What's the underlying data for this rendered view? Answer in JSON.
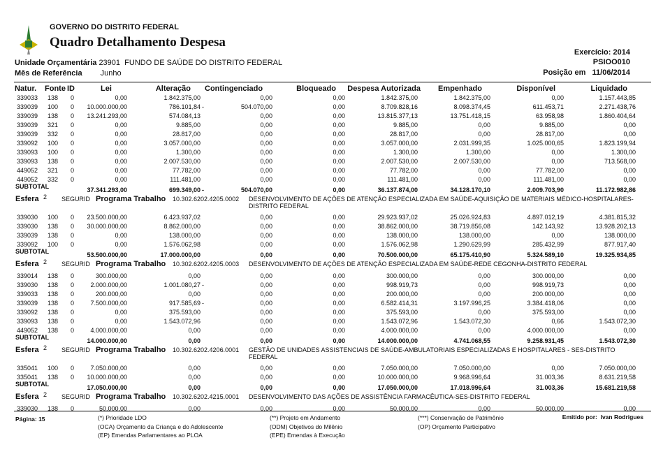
{
  "header": {
    "org": "GOVERNO DO DISTRITO FEDERAL",
    "title": "Quadro Detalhamento Despesa",
    "exercicio_label": "Exercício:",
    "exercicio": "2014",
    "report_code": "PSIOO010",
    "unidade_label": "Unidade Orçamentária",
    "unidade_code": "23901",
    "unidade_name": "FUNDO DE SAÚDE DO DISTRITO FEDERAL",
    "mes_label": "Mês de Referência",
    "mes": "Junho",
    "posicao_label": "Posição em",
    "posicao": "11/06/2014"
  },
  "columns": [
    "Natur.",
    "Fonte",
    "ID",
    "Lei",
    "Alteração",
    "Contingenciado",
    "Bloqueado",
    "Despesa Autorizada",
    "Empenhado",
    "Disponível",
    "Liquidado"
  ],
  "subtotal_label": "SUBTOTAL",
  "sections": [
    {
      "esfera": null,
      "rows": [
        [
          "339033",
          "138",
          "0",
          "0,00",
          "1.842.375,00",
          "",
          "0,00",
          "0,00",
          "1.842.375,00",
          "1.842.375,00",
          "0,00",
          "1.157.443,85"
        ],
        [
          "339039",
          "100",
          "0",
          "10.000.000,00",
          "786.101,84",
          "-",
          "504.070,00",
          "0,00",
          "8.709.828,16",
          "8.098.374,45",
          "611.453,71",
          "2.271.438,76"
        ],
        [
          "339039",
          "138",
          "0",
          "13.241.293,00",
          "574.084,13",
          "",
          "0,00",
          "0,00",
          "13.815.377,13",
          "13.751.418,15",
          "63.958,98",
          "1.860.404,64"
        ],
        [
          "339039",
          "321",
          "0",
          "0,00",
          "9.885,00",
          "",
          "0,00",
          "0,00",
          "9.885,00",
          "0,00",
          "9.885,00",
          "0,00"
        ],
        [
          "339039",
          "332",
          "0",
          "0,00",
          "28.817,00",
          "",
          "0,00",
          "0,00",
          "28.817,00",
          "0,00",
          "28.817,00",
          "0,00"
        ],
        [
          "339092",
          "100",
          "0",
          "0,00",
          "3.057.000,00",
          "",
          "0,00",
          "0,00",
          "3.057.000,00",
          "2.031.999,35",
          "1.025.000,65",
          "1.823.199,94"
        ],
        [
          "339093",
          "100",
          "0",
          "0,00",
          "1.300,00",
          "",
          "0,00",
          "0,00",
          "1.300,00",
          "1.300,00",
          "0,00",
          "1.300,00"
        ],
        [
          "339093",
          "138",
          "0",
          "0,00",
          "2.007.530,00",
          "",
          "0,00",
          "0,00",
          "2.007.530,00",
          "2.007.530,00",
          "0,00",
          "713.568,00"
        ],
        [
          "449052",
          "321",
          "0",
          "0,00",
          "77.782,00",
          "",
          "0,00",
          "0,00",
          "77.782,00",
          "0,00",
          "77.782,00",
          "0,00"
        ],
        [
          "449052",
          "332",
          "0",
          "0,00",
          "111.481,00",
          "",
          "0,00",
          "0,00",
          "111.481,00",
          "0,00",
          "111.481,00",
          "0,00"
        ]
      ],
      "subtotal": [
        "37.341.293,00",
        "699.349,00",
        "-",
        "504.070,00",
        "0,00",
        "36.137.874,00",
        "34.128.170,10",
        "2.009.703,90",
        "11.172.982,86"
      ]
    },
    {
      "esfera": {
        "label": "Esfera",
        "num": "2",
        "seg": "SEGURID",
        "prog_label": "Programa Trabalho",
        "code": "10.302.6202.4205.0002",
        "desc": "DESENVOLVIMENTO DE AÇÕES DE ATENÇÃO ESPECIALIZADA EM SAÚDE-AQUISIÇÃO DE MATERIAIS MÉDICO-HOSPITALARES-DISTRITO FEDERAL"
      },
      "rows": [
        [
          "339030",
          "100",
          "0",
          "23.500.000,00",
          "6.423.937,02",
          "",
          "0,00",
          "0,00",
          "29.923.937,02",
          "25.026.924,83",
          "4.897.012,19",
          "4.381.815,32"
        ],
        [
          "339030",
          "138",
          "0",
          "30.000.000,00",
          "8.862.000,00",
          "",
          "0,00",
          "0,00",
          "38.862.000,00",
          "38.719.856,08",
          "142.143,92",
          "13.928.202,13"
        ],
        [
          "339039",
          "138",
          "0",
          "0,00",
          "138.000,00",
          "",
          "0,00",
          "0,00",
          "138.000,00",
          "138.000,00",
          "0,00",
          "138.000,00"
        ],
        [
          "339092",
          "100",
          "0",
          "0,00",
          "1.576.062,98",
          "",
          "0,00",
          "0,00",
          "1.576.062,98",
          "1.290.629,99",
          "285.432,99",
          "877.917,40"
        ]
      ],
      "subtotal": [
        "53.500.000,00",
        "17.000.000,00",
        "",
        "0,00",
        "0,00",
        "70.500.000,00",
        "65.175.410,90",
        "5.324.589,10",
        "19.325.934,85"
      ]
    },
    {
      "esfera": {
        "label": "Esfera",
        "num": "2",
        "seg": "SEGURID",
        "prog_label": "Programa Trabalho",
        "code": "10.302.6202.4205.0003",
        "desc": "DESENVOLVIMENTO DE AÇÕES DE ATENÇÃO ESPECIALIZADA EM SAÚDE-REDE CEGONHA-DISTRITO FEDERAL"
      },
      "rows": [
        [
          "339014",
          "138",
          "0",
          "300.000,00",
          "0,00",
          "",
          "0,00",
          "0,00",
          "300.000,00",
          "0,00",
          "300.000,00",
          "0,00"
        ],
        [
          "339030",
          "138",
          "0",
          "2.000.000,00",
          "1.001.080,27",
          "-",
          "0,00",
          "0,00",
          "998.919,73",
          "0,00",
          "998.919,73",
          "0,00"
        ],
        [
          "339033",
          "138",
          "0",
          "200.000,00",
          "0,00",
          "",
          "0,00",
          "0,00",
          "200.000,00",
          "0,00",
          "200.000,00",
          "0,00"
        ],
        [
          "339039",
          "138",
          "0",
          "7.500.000,00",
          "917.585,69",
          "-",
          "0,00",
          "0,00",
          "6.582.414,31",
          "3.197.996,25",
          "3.384.418,06",
          "0,00"
        ],
        [
          "339092",
          "138",
          "0",
          "0,00",
          "375.593,00",
          "",
          "0,00",
          "0,00",
          "375.593,00",
          "0,00",
          "375.593,00",
          "0,00"
        ],
        [
          "339093",
          "138",
          "0",
          "0,00",
          "1.543.072,96",
          "",
          "0,00",
          "0,00",
          "1.543.072,96",
          "1.543.072,30",
          "0,66",
          "1.543.072,30"
        ],
        [
          "449052",
          "138",
          "0",
          "4.000.000,00",
          "0,00",
          "",
          "0,00",
          "0,00",
          "4.000.000,00",
          "0,00",
          "4.000.000,00",
          "0,00"
        ]
      ],
      "subtotal": [
        "14.000.000,00",
        "0,00",
        "",
        "0,00",
        "0,00",
        "14.000.000,00",
        "4.741.068,55",
        "9.258.931,45",
        "1.543.072,30"
      ]
    },
    {
      "esfera": {
        "label": "Esfera",
        "num": "2",
        "seg": "SEGURID",
        "prog_label": "Programa Trabalho",
        "code": "10.302.6202.4206.0001",
        "desc": "GESTÃO DE UNIDADES ASSISTENCIAIS DE SAÚDE-AMBULATORIAIS ESPECIALIZADAS E HOSPITALARES - SES-DISTRITO FEDERAL"
      },
      "rows": [
        [
          "335041",
          "100",
          "0",
          "7.050.000,00",
          "0,00",
          "",
          "0,00",
          "0,00",
          "7.050.000,00",
          "7.050.000,00",
          "0,00",
          "7.050.000,00"
        ],
        [
          "335041",
          "138",
          "0",
          "10.000.000,00",
          "0,00",
          "",
          "0,00",
          "0,00",
          "10.000.000,00",
          "9.968.996,64",
          "31.003,36",
          "8.631.219,58"
        ]
      ],
      "subtotal": [
        "17.050.000,00",
        "0,00",
        "",
        "0,00",
        "0,00",
        "17.050.000,00",
        "17.018.996,64",
        "31.003,36",
        "15.681.219,58"
      ]
    },
    {
      "esfera": {
        "label": "Esfera",
        "num": "2",
        "seg": "SEGURID",
        "prog_label": "Programa Trabalho",
        "code": "10.302.6202.4215.0001",
        "desc": "DESENVOLVIMENTO DAS AÇÕES DE ASSISTÊNCIA FARMACÊUTICA-SES-DISTRITO FEDERAL"
      },
      "rows": [
        [
          "339030",
          "138",
          "0",
          "50.000,00",
          "0,00",
          "",
          "0,00",
          "0,00",
          "50.000,00",
          "0,00",
          "50.000,00",
          "0,00"
        ]
      ],
      "subtotal": null
    }
  ],
  "footer": {
    "page_label": "Página:",
    "page": "15",
    "legend": [
      [
        "(*) Prioridade LDO",
        "(OCA)  Orçamento da Criança e do Adolescente",
        "(EP)  Emendas Parlamentares ao PLOA"
      ],
      [
        "(**) Projeto em Andamento",
        "(ODM) Objetivos do Milênio",
        "(EPE) Emendas à Execução"
      ],
      [
        "(***) Conservação de Patrimônio",
        "(OP) Orçamento Participativo"
      ]
    ],
    "emitido_label": "Emitido por:",
    "emitido": "Ivan Rodrigues"
  },
  "colors": {
    "logo_green": "#2e7d32",
    "logo_yellow": "#c9b400"
  }
}
